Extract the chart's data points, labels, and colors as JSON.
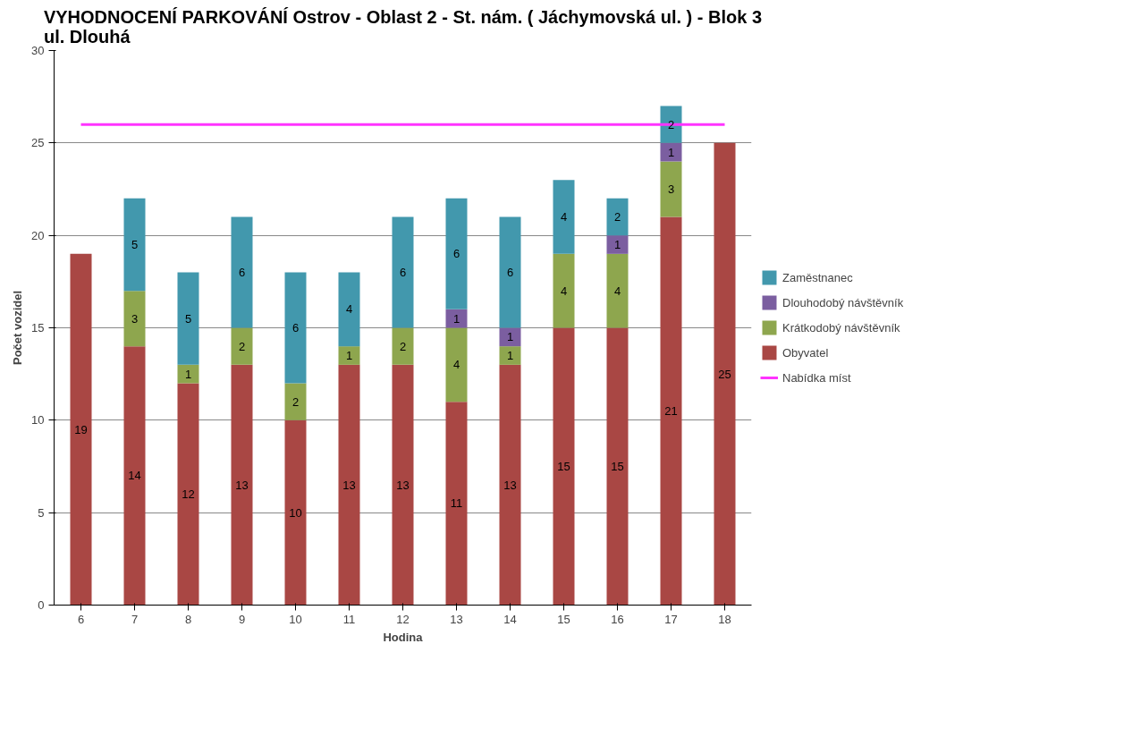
{
  "chart_data": {
    "type": "bar",
    "stacked": true,
    "title": "VYHODNOCENÍ PARKOVÁNÍ Ostrov - Oblast 2 - St. nám. ( Jáchymovská ul. ) - Blok 3\nul. Dlouhá",
    "xlabel": "Hodina",
    "ylabel": "Počet vozidel",
    "categories": [
      "6",
      "7",
      "8",
      "9",
      "10",
      "11",
      "12",
      "13",
      "14",
      "15",
      "16",
      "17",
      "18"
    ],
    "series": [
      {
        "name": "Obyvatel",
        "color": "#a94744",
        "values": [
          19,
          14,
          12,
          13,
          10,
          13,
          13,
          11,
          13,
          15,
          15,
          21,
          25
        ],
        "value_labels": [
          "19",
          "14",
          "12",
          "13",
          "10",
          "13",
          "13",
          "11",
          "13",
          "15",
          "15",
          "21",
          "25"
        ]
      },
      {
        "name": "Krátkodobý návštěvník",
        "color": "#8ea64e",
        "values": [
          null,
          3,
          1,
          2,
          2,
          1,
          2,
          4,
          1,
          4,
          4,
          3,
          null
        ],
        "value_labels": [
          null,
          "3",
          "1",
          "2",
          "2",
          "1",
          "2",
          "4",
          "1",
          "4",
          "4",
          "3",
          null
        ]
      },
      {
        "name": "Dlouhodobý návštěvník",
        "color": "#7b5ea0",
        "values": [
          null,
          null,
          null,
          null,
          null,
          null,
          null,
          1,
          1,
          null,
          1,
          1,
          null
        ],
        "value_labels": [
          null,
          null,
          null,
          null,
          null,
          null,
          null,
          "1",
          "1",
          null,
          "1",
          "1",
          null
        ]
      },
      {
        "name": "Zaměstnanec",
        "color": "#4298ad",
        "values": [
          null,
          5,
          5,
          6,
          6,
          4,
          6,
          6,
          6,
          4,
          2,
          2,
          null
        ],
        "value_labels": [
          null,
          "5",
          "5",
          "6",
          "6",
          "4",
          "6",
          "6",
          "6",
          "4",
          "2",
          "2",
          null
        ]
      },
      {
        "name": "Nabídka míst",
        "type": "line",
        "color": "#ff33ff",
        "values": [
          26,
          26,
          26,
          26,
          26,
          26,
          26,
          26,
          26,
          26,
          26,
          26,
          26
        ]
      }
    ],
    "ylim": [
      0,
      30
    ],
    "yticks": [
      0,
      5,
      10,
      15,
      20,
      25,
      30
    ],
    "grid": "y",
    "legend": "right"
  }
}
